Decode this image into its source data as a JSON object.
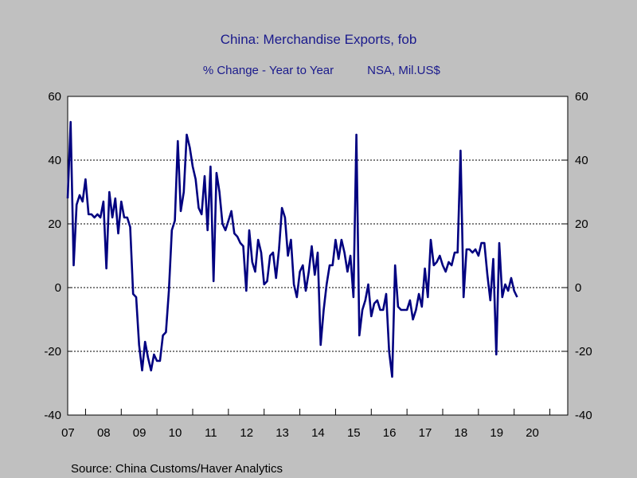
{
  "chart_data": {
    "type": "line",
    "title": "China: Merchandise Exports, fob",
    "subtitle_left": "% Change - Year to Year",
    "subtitle_right": "NSA, Mil.US$",
    "source": "Source:  China Customs/Haver Analytics",
    "ylim": [
      -40,
      60
    ],
    "yticks": [
      60,
      40,
      20,
      0,
      -20,
      -40
    ],
    "ytick_labels": [
      "60",
      "40",
      "20",
      "0",
      "-20",
      "-40"
    ],
    "xlim": [
      2006.5,
      2020.5
    ],
    "x_tick_labels": [
      "07",
      "08",
      "09",
      "10",
      "11",
      "12",
      "13",
      "14",
      "15",
      "16",
      "17",
      "18",
      "19",
      "20"
    ],
    "grid": true,
    "colors": {
      "background": "#c0c0c0",
      "plot": "#ffffff",
      "line": "#000080",
      "title": "#1a1a8c"
    },
    "series": [
      {
        "start": "2006-07",
        "frequency": "monthly",
        "values": [
          28,
          52,
          7,
          26,
          29,
          27,
          34,
          23,
          23,
          22,
          23,
          22,
          27,
          6,
          30,
          22,
          28,
          17,
          27,
          22,
          22,
          19,
          -2,
          -3,
          -18,
          -26,
          -17,
          -22,
          -26,
          -21,
          -23,
          -23,
          -15,
          -14,
          -1,
          18,
          21,
          46,
          24,
          30,
          48,
          44,
          38,
          34,
          25,
          23,
          35,
          18,
          38,
          2,
          36,
          30,
          20,
          18,
          21,
          24,
          17,
          16,
          14,
          13,
          -1,
          18,
          8,
          5,
          15,
          11,
          1,
          2,
          10,
          11,
          3,
          12,
          25,
          22,
          10,
          15,
          1,
          -3,
          5,
          7,
          -1,
          5,
          13,
          4,
          11,
          -18,
          -7,
          1,
          7,
          7,
          15,
          9,
          15,
          11,
          5,
          10,
          -3,
          48,
          -15,
          -7,
          -4,
          1,
          -9,
          -5,
          -4,
          -7,
          -7,
          -2,
          -20,
          -28,
          7,
          -6,
          -7,
          -7,
          -7,
          -4,
          -10,
          -7,
          -2,
          -6,
          6,
          -3,
          15,
          7,
          8,
          10,
          7,
          5,
          8,
          7,
          11,
          11,
          43,
          -3,
          12,
          12,
          11,
          12,
          10,
          14,
          14,
          4,
          -4,
          9,
          -21,
          14,
          -3,
          1,
          -1,
          3,
          -1,
          -3
        ]
      }
    ]
  }
}
